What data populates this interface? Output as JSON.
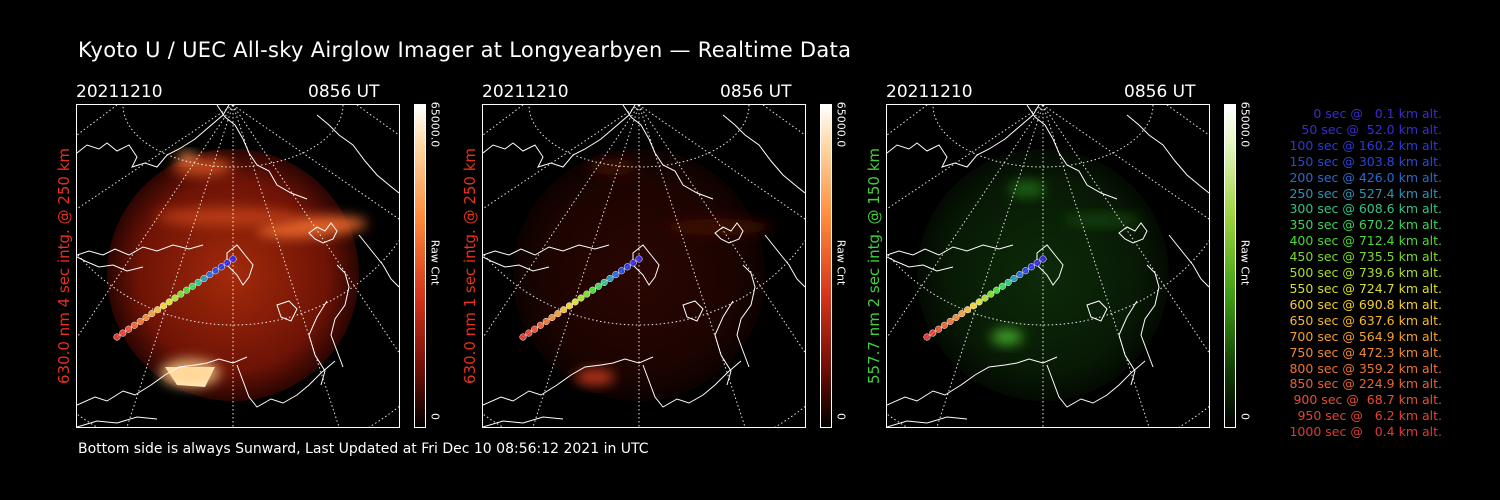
{
  "title": "Kyoto U / UEC All-sky Airglow Imager at Longyearbyen — Realtime Data",
  "panels": [
    {
      "date": "20211210",
      "time": "0856 UT",
      "side_label": "630.0 nm 4 sec intg. @ 250 km",
      "label_color": "#e8301c",
      "cbar_max": "65000.0",
      "cbar_min": "0",
      "cbar_unit": "Raw Cnt",
      "theme": "red-bright"
    },
    {
      "date": "20211210",
      "time": "0856 UT",
      "side_label": "630.0 nm 1 sec intg. @ 250 km",
      "label_color": "#e8301c",
      "cbar_max": "65000.0",
      "cbar_min": "0",
      "cbar_unit": "Raw Cnt",
      "theme": "red-dim"
    },
    {
      "date": "20211210",
      "time": "0856 UT",
      "side_label": "557.7 nm 2 sec intg. @ 150 km",
      "label_color": "#3fd23a",
      "cbar_max": "65000.0",
      "cbar_min": "0",
      "cbar_unit": "Raw Cnt",
      "theme": "green"
    }
  ],
  "legend": [
    {
      "text": "0 sec @   0.1 km alt.",
      "color": "#3a2bd6"
    },
    {
      "text": "50 sec @  52.0 km alt.",
      "color": "#3a2bd6"
    },
    {
      "text": "100 sec @ 160.2 km alt.",
      "color": "#2b3ad9"
    },
    {
      "text": "150 sec @ 303.8 km alt.",
      "color": "#2a48d8"
    },
    {
      "text": "200 sec @ 426.0 km alt.",
      "color": "#2a6ad2"
    },
    {
      "text": "250 sec @ 527.4 km alt.",
      "color": "#2c93b6"
    },
    {
      "text": "300 sec @ 608.6 km alt.",
      "color": "#35c28a"
    },
    {
      "text": "350 sec @ 670.2 km alt.",
      "color": "#3ed25c"
    },
    {
      "text": "400 sec @ 712.4 km alt.",
      "color": "#4bd83a"
    },
    {
      "text": "450 sec @ 735.5 km alt.",
      "color": "#7ada2f"
    },
    {
      "text": "500 sec @ 739.6 km alt.",
      "color": "#a9dd2c"
    },
    {
      "text": "550 sec @ 724.7 km alt.",
      "color": "#d8df2c"
    },
    {
      "text": "600 sec @ 690.8 km alt.",
      "color": "#f3d02e"
    },
    {
      "text": "650 sec @ 637.6 km alt.",
      "color": "#f5b82f"
    },
    {
      "text": "700 sec @ 564.9 km alt.",
      "color": "#f2a030"
    },
    {
      "text": "750 sec @ 472.3 km alt.",
      "color": "#ef8a31"
    },
    {
      "text": "800 sec @ 359.2 km alt.",
      "color": "#ec7432"
    },
    {
      "text": "850 sec @ 224.9 km alt.",
      "color": "#e96232"
    },
    {
      "text": "900 sec @  68.7 km alt.",
      "color": "#e65032"
    },
    {
      "text": "950 sec @   6.2 km alt.",
      "color": "#e34332"
    },
    {
      "text": "1000 sec @   0.4 km alt.",
      "color": "#e03a32"
    }
  ],
  "footer": "Bottom side is always Sunward, Last Updated at Fri Dec 10 08:56:12 2021 in UTC"
}
